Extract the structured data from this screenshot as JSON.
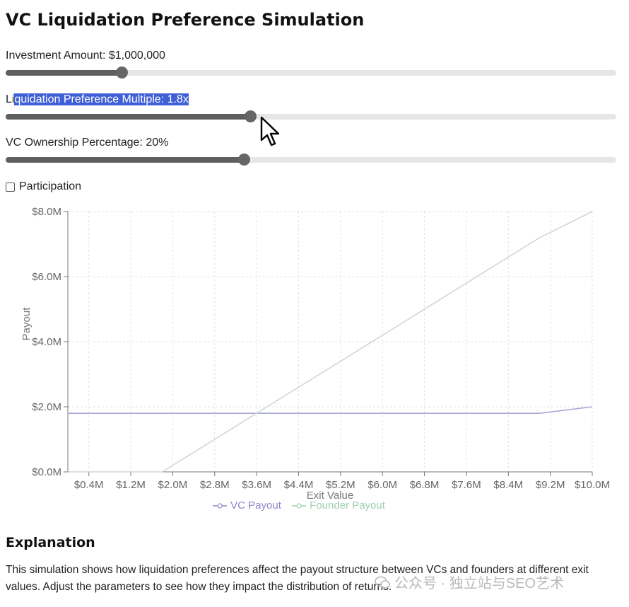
{
  "page": {
    "title": "VC Liquidation Preference Simulation"
  },
  "controls": {
    "investment": {
      "label": "Investment Amount: $1,000,000",
      "level": 0.19
    },
    "multiple": {
      "label_pre": "Li",
      "label_hl": "quidation Preference Multiple: 1.8x",
      "level": 0.4
    },
    "ownership": {
      "label": "VC Ownership Percentage: 20%",
      "level": 0.39
    },
    "participation": {
      "label": "Participation",
      "checked": false
    }
  },
  "chart_data": {
    "type": "line",
    "xlabel": "Exit Value",
    "ylabel": "Payout",
    "x_ticks": [
      "$0.4M",
      "$1.2M",
      "$2.0M",
      "$2.8M",
      "$3.6M",
      "$4.4M",
      "$5.2M",
      "$6.0M",
      "$6.8M",
      "$7.6M",
      "$8.4M",
      "$9.2M",
      "$10.0M"
    ],
    "y_ticks": [
      "$0.0M",
      "$2.0M",
      "$4.0M",
      "$6.0M",
      "$8.0M"
    ],
    "xlim": [
      0,
      10.0
    ],
    "ylim": [
      0,
      8.0
    ],
    "grid": true,
    "legend_position": "bottom",
    "series": [
      {
        "name": "VC Payout",
        "color": "#8b87c9",
        "x": [
          0,
          1.8,
          9.0,
          10.0
        ],
        "y": [
          1.8,
          1.8,
          1.8,
          2.0
        ]
      },
      {
        "name": "Founder Payout",
        "color": "#9fcfb0",
        "x": [
          0,
          1.8,
          9.0,
          10.0
        ],
        "y": [
          0,
          0,
          7.2,
          8.0
        ]
      }
    ]
  },
  "explanation": {
    "title": "Explanation",
    "text": "This simulation shows how liquidation preferences affect the payout structure between VCs and founders at different exit values. Adjust the parameters to see how they impact the distribution of returns."
  },
  "watermark": {
    "text": "公众号 · 独立站与SEO艺术"
  }
}
